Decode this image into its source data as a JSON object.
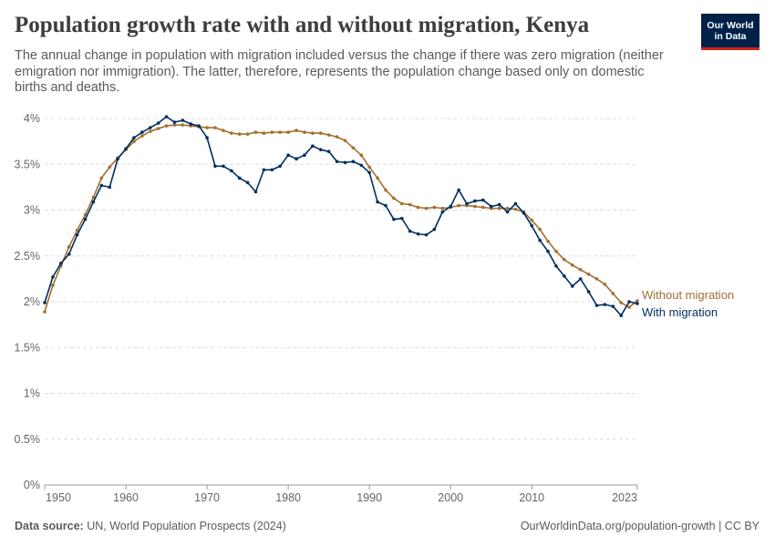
{
  "header": {
    "title": "Population growth rate with and without migration, Kenya",
    "subtitle": "The annual change in population with migration included versus the change if there was zero migration (neither emigration nor immigration). The latter, therefore, represents the population change based only on domestic births and deaths.",
    "logo_line1": "Our World",
    "logo_line2": "in Data"
  },
  "footer": {
    "source_label": "Data source:",
    "source_text": "UN, World Population Prospects (2024)",
    "url_text": "OurWorldinData.org/population-growth | CC BY"
  },
  "colors": {
    "with_migration": "#002f5f",
    "without_migration": "#a2702e",
    "grid": "#dddddd",
    "axis": "#999999"
  },
  "chart_data": {
    "type": "line",
    "title": "Population growth rate with and without migration, Kenya",
    "ylabel": "",
    "xlabel": "",
    "xlim": [
      1950,
      2023
    ],
    "ylim": [
      0,
      4
    ],
    "y_ticks": [
      0,
      0.5,
      1,
      1.5,
      2,
      2.5,
      3,
      3.5,
      4
    ],
    "y_tick_labels": [
      "0%",
      "0.5%",
      "1%",
      "1.5%",
      "2%",
      "2.5%",
      "3%",
      "3.5%",
      "4%"
    ],
    "x_ticks": [
      1950,
      1960,
      1970,
      1980,
      1990,
      2000,
      2010,
      2023
    ],
    "x_tick_labels": [
      "1950",
      "1960",
      "1970",
      "1980",
      "1990",
      "2000",
      "2010",
      "2023"
    ],
    "grid": "horizontal-dashed",
    "legend": "line-end-labels-right",
    "x": [
      1950,
      1951,
      1952,
      1953,
      1954,
      1955,
      1956,
      1957,
      1958,
      1959,
      1960,
      1961,
      1962,
      1963,
      1964,
      1965,
      1966,
      1967,
      1968,
      1969,
      1970,
      1971,
      1972,
      1973,
      1974,
      1975,
      1976,
      1977,
      1978,
      1979,
      1980,
      1981,
      1982,
      1983,
      1984,
      1985,
      1986,
      1987,
      1988,
      1989,
      1990,
      1991,
      1992,
      1993,
      1994,
      1995,
      1996,
      1997,
      1998,
      1999,
      2000,
      2001,
      2002,
      2003,
      2004,
      2005,
      2006,
      2007,
      2008,
      2009,
      2010,
      2011,
      2012,
      2013,
      2014,
      2015,
      2016,
      2017,
      2018,
      2019,
      2020,
      2021,
      2022,
      2023
    ],
    "series": [
      {
        "name": "Without migration",
        "color_key": "without_migration",
        "values": [
          1.89,
          2.18,
          2.39,
          2.6,
          2.78,
          2.95,
          3.14,
          3.35,
          3.47,
          3.57,
          3.66,
          3.75,
          3.81,
          3.86,
          3.89,
          3.92,
          3.93,
          3.93,
          3.92,
          3.91,
          3.9,
          3.9,
          3.87,
          3.84,
          3.83,
          3.83,
          3.85,
          3.84,
          3.85,
          3.85,
          3.85,
          3.87,
          3.85,
          3.84,
          3.84,
          3.82,
          3.8,
          3.76,
          3.68,
          3.6,
          3.47,
          3.35,
          3.22,
          3.13,
          3.07,
          3.06,
          3.03,
          3.02,
          3.03,
          3.02,
          3.03,
          3.05,
          3.05,
          3.04,
          3.03,
          3.02,
          3.02,
          3.02,
          3.01,
          2.98,
          2.89,
          2.79,
          2.66,
          2.55,
          2.46,
          2.4,
          2.35,
          2.3,
          2.25,
          2.19,
          2.09,
          1.99,
          1.94,
          2.01
        ]
      },
      {
        "name": "With migration",
        "color_key": "with_migration",
        "values": [
          1.99,
          2.27,
          2.42,
          2.52,
          2.73,
          2.9,
          3.09,
          3.27,
          3.25,
          3.56,
          3.67,
          3.79,
          3.85,
          3.9,
          3.95,
          4.02,
          3.96,
          3.98,
          3.94,
          3.92,
          3.79,
          3.48,
          3.48,
          3.43,
          3.35,
          3.3,
          3.2,
          3.44,
          3.44,
          3.48,
          3.6,
          3.56,
          3.6,
          3.7,
          3.66,
          3.64,
          3.53,
          3.52,
          3.53,
          3.49,
          3.41,
          3.09,
          3.05,
          2.9,
          2.91,
          2.77,
          2.74,
          2.73,
          2.79,
          2.98,
          3.04,
          3.22,
          3.07,
          3.1,
          3.11,
          3.04,
          3.06,
          2.98,
          3.07,
          2.97,
          2.83,
          2.67,
          2.55,
          2.39,
          2.28,
          2.17,
          2.25,
          2.11,
          1.96,
          1.97,
          1.95,
          1.85,
          2.0,
          1.98
        ]
      }
    ]
  }
}
